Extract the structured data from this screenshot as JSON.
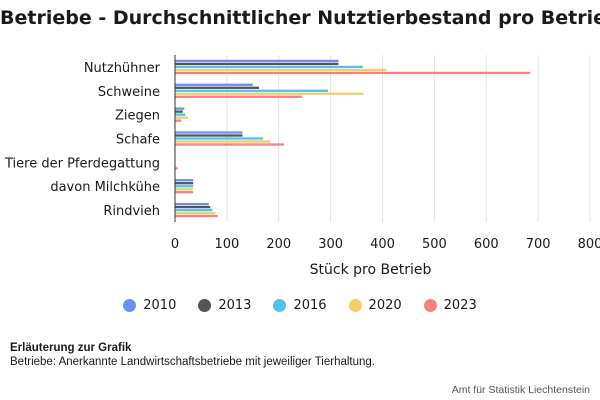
{
  "chart_data": {
    "type": "bar",
    "orientation": "horizontal",
    "title": "Betriebe - Durchschnittlicher Nutztierbestand pro Betrieb",
    "xlabel": "Stück pro Betrieb",
    "ylabel": "",
    "xlim": [
      0,
      800
    ],
    "xticks": [
      "0",
      "100",
      "200",
      "300",
      "400",
      "500",
      "600",
      "700",
      "800"
    ],
    "grid": true,
    "legend_position": "bottom",
    "categories": [
      "Nutzhühner",
      "Schweine",
      "Ziegen",
      "Schafe",
      "Tiere der Pferdegattung",
      "davon Milchkühe",
      "Rindvieh"
    ],
    "series": [
      {
        "name": "2010",
        "color": "#6f8ff0",
        "values": [
          315,
          150,
          18,
          130,
          0,
          35,
          65
        ]
      },
      {
        "name": "2013",
        "color": "#555555",
        "values": [
          315,
          162,
          15,
          130,
          0,
          35,
          68
        ]
      },
      {
        "name": "2016",
        "color": "#4fc3ee",
        "values": [
          362,
          295,
          20,
          170,
          0,
          35,
          72
        ]
      },
      {
        "name": "2020",
        "color": "#f4ce6b",
        "values": [
          408,
          363,
          25,
          183,
          0,
          35,
          78
        ]
      },
      {
        "name": "2023",
        "color": "#f7837e",
        "values": [
          685,
          245,
          12,
          210,
          5,
          35,
          82
        ]
      }
    ]
  },
  "note": {
    "heading": "Erläuterung zur Grafik",
    "text": "Betriebe: Anerkannte Landwirtschaftsbetriebe mit jeweiliger Tierhaltung."
  },
  "source": "Amt für Statistik Liechtenstein"
}
